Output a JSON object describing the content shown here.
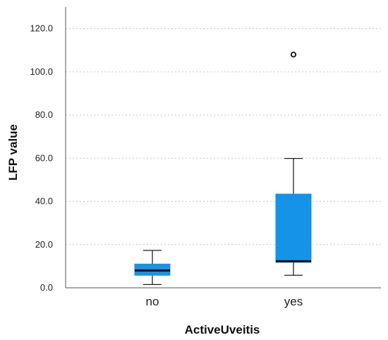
{
  "chart_data": {
    "type": "box",
    "xlabel": "ActiveUveitis",
    "ylabel": "LFP value",
    "ylim": [
      0,
      130
    ],
    "yticks": [
      "0.0",
      "20.0",
      "40.0",
      "60.0",
      "80.0",
      "100.0",
      "120.0"
    ],
    "grid": true,
    "categories": [
      "no",
      "yes"
    ],
    "boxes": [
      {
        "category": "no",
        "whisker_low": 1.5,
        "q1": 5.8,
        "median": 8.0,
        "q3": 11.0,
        "whisker_high": 17.3,
        "outliers": []
      },
      {
        "category": "yes",
        "whisker_low": 5.8,
        "q1": 11.8,
        "median": 12.3,
        "q3": 43.4,
        "whisker_high": 59.9,
        "outliers": [
          108
        ]
      }
    ],
    "colors": {
      "box_fill": "#1493e8",
      "line": "#222222",
      "grid": "#c8c8c8"
    }
  }
}
